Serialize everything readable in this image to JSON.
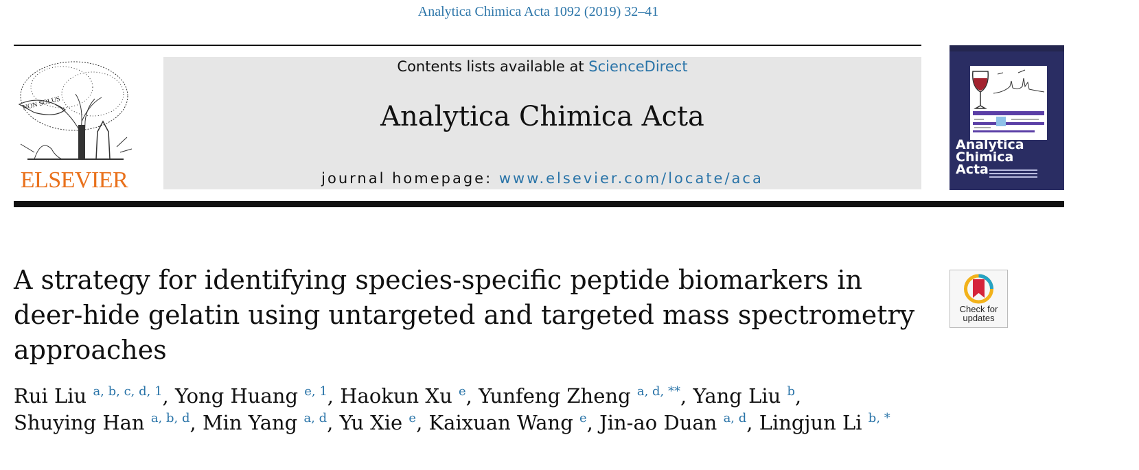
{
  "citation": "Analytica Chimica Acta 1092 (2019) 32–41",
  "publisher": {
    "logo_text": "ELSEVIER",
    "logo_motto": "NON SOLUS",
    "logo_color": "#e9711c"
  },
  "banner": {
    "contents_prefix": "Contents lists available at ",
    "contents_link": "ScienceDirect",
    "journal_title": "Analytica Chimica Acta",
    "homepage_prefix": "journal homepage: ",
    "homepage_link": "www.elsevier.com/locate/aca",
    "background": "#e6e6e6",
    "link_color": "#2a74a8"
  },
  "cover": {
    "title_lines": [
      "Analytica",
      "Chimica",
      "Acta"
    ],
    "background": "#2a2d63"
  },
  "check_for_updates": {
    "line1": "Check for",
    "line2": "updates",
    "icon": "bookmark-ring-icon"
  },
  "article": {
    "title": "A strategy for identifying species-specific peptide biomarkers in deer-hide gelatin using untargeted and targeted mass spectrometry approaches"
  },
  "authors": {
    "line1": [
      {
        "name": "Rui Liu",
        "affil": "a, b, c, d, 1",
        "sep": ", "
      },
      {
        "name": "Yong Huang",
        "affil": "e, 1",
        "sep": ", "
      },
      {
        "name": "Haokun Xu",
        "affil": "e",
        "sep": ", "
      },
      {
        "name": "Yunfeng Zheng",
        "affil": "a, d, **",
        "sep": ", "
      },
      {
        "name": "Yang Liu",
        "affil": "b",
        "sep": ","
      }
    ],
    "line2": [
      {
        "name": "Shuying Han",
        "affil": "a, b, d",
        "sep": ", "
      },
      {
        "name": "Min Yang",
        "affil": "a, d",
        "sep": ", "
      },
      {
        "name": "Yu Xie",
        "affil": "e",
        "sep": ", "
      },
      {
        "name": "Kaixuan Wang",
        "affil": "e",
        "sep": ", "
      },
      {
        "name": "Jin-ao Duan",
        "affil": "a, d",
        "sep": ", "
      },
      {
        "name": "Lingjun Li",
        "affil": "b, *",
        "sep": ""
      }
    ]
  }
}
